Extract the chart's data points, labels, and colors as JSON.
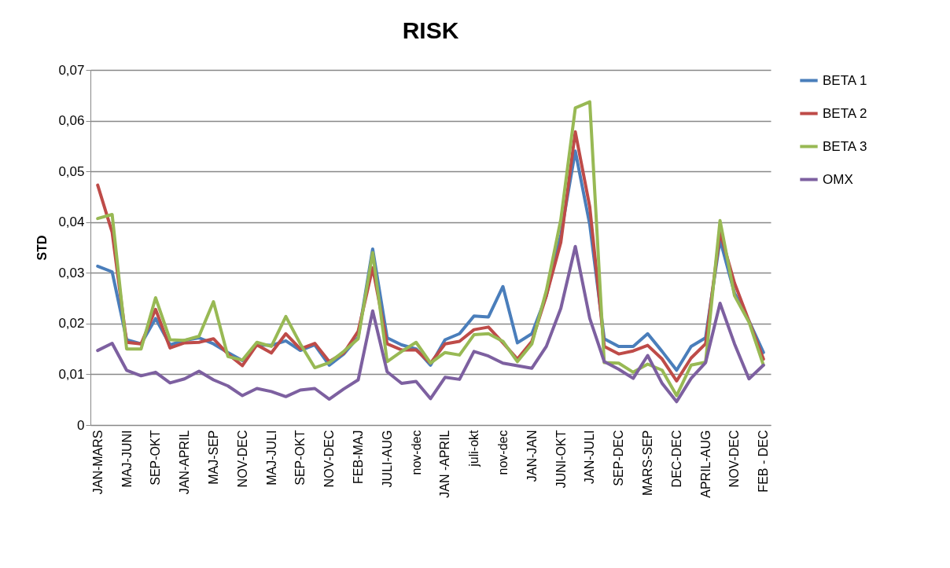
{
  "chart_data": {
    "type": "line",
    "title": "RISK",
    "ylabel": "STD",
    "categories": [
      "JAN-MARS",
      null,
      "MAJ-JUNI",
      null,
      "SEP-OKT",
      null,
      "JAN-APRIL",
      null,
      "MAJ-SEP",
      null,
      "NOV-DEC",
      null,
      "MAJ-JULI",
      null,
      "SEP-OKT",
      null,
      "NOV-DEC",
      null,
      "FEB-MAJ",
      null,
      "JULI-AUG",
      null,
      "nov-dec",
      null,
      "JAN -APRIL",
      null,
      "juli-okt",
      null,
      "nov-dec",
      null,
      "JAN-JAN",
      null,
      "JUNI-OKT",
      null,
      "JAN-JULI",
      null,
      "SEP-DEC",
      null,
      "MARS-SEP",
      null,
      "DEC-DEC",
      null,
      "APRIL-AUG",
      null,
      "NOV-DEC",
      null,
      "FEB - DEC"
    ],
    "series": [
      {
        "name": "BETA 1",
        "color": "#4a7ebb",
        "values": [
          0.0313,
          0.0302,
          0.0168,
          0.016,
          0.021,
          0.0158,
          0.0167,
          0.0172,
          0.016,
          0.0143,
          0.0127,
          0.0158,
          0.0157,
          0.0166,
          0.0147,
          0.0158,
          0.0118,
          0.014,
          0.0173,
          0.0347,
          0.0172,
          0.0158,
          0.015,
          0.0118,
          0.0168,
          0.018,
          0.0215,
          0.0213,
          0.0273,
          0.0162,
          0.018,
          0.0255,
          0.0375,
          0.054,
          0.0395,
          0.017,
          0.0155,
          0.0155,
          0.018,
          0.0145,
          0.0108,
          0.0155,
          0.0172,
          0.0365,
          0.026,
          0.0205,
          0.0143
        ]
      },
      {
        "name": "BETA 2",
        "color": "#be4b48",
        "values": [
          0.0473,
          0.038,
          0.0163,
          0.016,
          0.0228,
          0.0152,
          0.0162,
          0.0163,
          0.017,
          0.014,
          0.0117,
          0.0158,
          0.0142,
          0.018,
          0.015,
          0.0161,
          0.0125,
          0.0142,
          0.0185,
          0.031,
          0.016,
          0.0148,
          0.0148,
          0.0122,
          0.016,
          0.0165,
          0.0188,
          0.0193,
          0.0162,
          0.013,
          0.0165,
          0.0255,
          0.036,
          0.0578,
          0.043,
          0.0155,
          0.014,
          0.0146,
          0.0157,
          0.013,
          0.0087,
          0.0132,
          0.016,
          0.038,
          0.028,
          0.0205,
          0.013
        ]
      },
      {
        "name": "BETA 3",
        "color": "#98b954",
        "values": [
          0.0407,
          0.0415,
          0.015,
          0.015,
          0.0251,
          0.0168,
          0.0167,
          0.0175,
          0.0243,
          0.0135,
          0.0128,
          0.0163,
          0.0155,
          0.0214,
          0.016,
          0.0113,
          0.0123,
          0.0145,
          0.017,
          0.034,
          0.0125,
          0.0145,
          0.0163,
          0.0122,
          0.0143,
          0.0138,
          0.0178,
          0.018,
          0.0165,
          0.0125,
          0.016,
          0.0265,
          0.0405,
          0.0625,
          0.0637,
          0.0123,
          0.0122,
          0.0104,
          0.012,
          0.0108,
          0.0058,
          0.0118,
          0.0124,
          0.0403,
          0.0255,
          0.0203,
          0.0118
        ]
      },
      {
        "name": "OMX",
        "color": "#7d60a0",
        "values": [
          0.0147,
          0.0161,
          0.0108,
          0.0097,
          0.0104,
          0.0083,
          0.0091,
          0.0106,
          0.0089,
          0.0077,
          0.0058,
          0.0072,
          0.0066,
          0.0056,
          0.0069,
          0.0072,
          0.0051,
          0.0071,
          0.0089,
          0.0225,
          0.0105,
          0.0082,
          0.0086,
          0.0052,
          0.0094,
          0.009,
          0.0145,
          0.0136,
          0.0122,
          0.0117,
          0.0112,
          0.0155,
          0.023,
          0.0352,
          0.021,
          0.0125,
          0.011,
          0.0092,
          0.0137,
          0.0082,
          0.0046,
          0.0092,
          0.0123,
          0.024,
          0.016,
          0.0091,
          0.0118
        ]
      }
    ],
    "ylim": [
      0,
      0.07
    ],
    "yticks": [
      0,
      {
        "value": 0.01,
        "label": "0,01"
      },
      {
        "value": 0.02,
        "label": "0,02"
      },
      {
        "value": 0.03,
        "label": "0,03"
      },
      {
        "value": 0.04,
        "label": "0,04"
      },
      {
        "value": 0.05,
        "label": "0,05"
      },
      {
        "value": 0.06,
        "label": "0,06"
      },
      {
        "value": 0.07,
        "label": "0,07"
      }
    ],
    "grid": "y",
    "legend": "right",
    "marker": "none",
    "line_style": "solid"
  }
}
